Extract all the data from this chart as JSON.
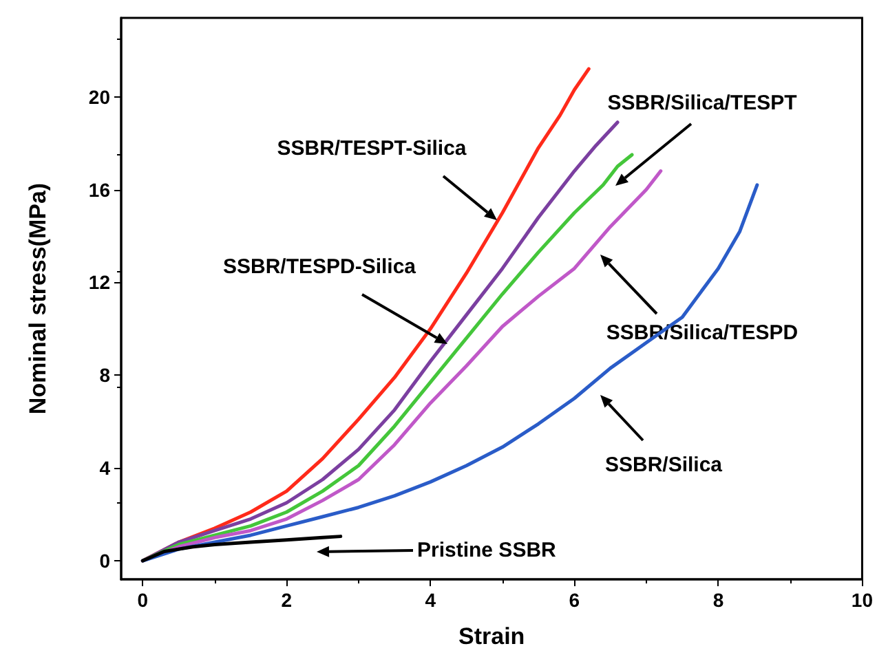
{
  "chart_data": {
    "type": "line",
    "xlabel": "Strain",
    "ylabel": "Nominal stress(MPa)",
    "xlim": [
      -0.3,
      10
    ],
    "ylim": [
      -0.8,
      23.4
    ],
    "xticks": [
      0,
      2,
      4,
      6,
      8,
      10
    ],
    "yticks": [
      0,
      4,
      8,
      12,
      16,
      20
    ],
    "grid": false,
    "marker": "none",
    "line_style": "solid",
    "series": [
      {
        "color": "#ff2a1a",
        "x": [
          0,
          0.5,
          1,
          1.5,
          2,
          2.5,
          3,
          3.5,
          4,
          4.5,
          5,
          5.5,
          5.8,
          6,
          6.2
        ],
        "values": [
          0,
          0.8,
          1.4,
          2.1,
          3,
          4.4,
          6.1,
          7.9,
          10,
          12.4,
          15,
          17.8,
          19.2,
          20.3,
          21.2
        ]
      },
      {
        "color": "#7b3fa0",
        "x": [
          0,
          0.5,
          1,
          1.5,
          2,
          2.5,
          3,
          3.5,
          4,
          4.5,
          5,
          5.5,
          6,
          6.3,
          6.6
        ],
        "values": [
          0,
          0.8,
          1.3,
          1.8,
          2.5,
          3.5,
          4.8,
          6.5,
          8.6,
          10.6,
          12.6,
          14.8,
          16.8,
          17.9,
          18.9
        ]
      },
      {
        "color": "#44c63a",
        "x": [
          0,
          0.5,
          1,
          1.5,
          2,
          2.5,
          3,
          3.5,
          4,
          4.5,
          5,
          5.5,
          6,
          6.4,
          6.6,
          6.8
        ],
        "values": [
          0,
          0.7,
          1.1,
          1.5,
          2.1,
          3,
          4.1,
          5.8,
          7.7,
          9.6,
          11.5,
          13.3,
          15,
          16.2,
          17,
          17.5
        ]
      },
      {
        "color": "#c058c8",
        "x": [
          0,
          0.5,
          1,
          1.5,
          2,
          2.5,
          3,
          3.5,
          4,
          4.5,
          5,
          5.5,
          6,
          6.5,
          7,
          7.2
        ],
        "values": [
          0,
          0.6,
          1,
          1.3,
          1.8,
          2.6,
          3.5,
          5,
          6.8,
          8.4,
          10.1,
          11.4,
          12.6,
          14.4,
          16,
          16.8
        ]
      },
      {
        "color": "#2a5cc8",
        "x": [
          0,
          0.5,
          1,
          1.5,
          2,
          2.5,
          3,
          3.5,
          4,
          4.5,
          5,
          5.5,
          6,
          6.5,
          7,
          7.5,
          8,
          8.3,
          8.54
        ],
        "values": [
          0,
          0.5,
          0.8,
          1.1,
          1.5,
          1.9,
          2.3,
          2.8,
          3.4,
          4.1,
          4.9,
          5.9,
          7,
          8.3,
          9.4,
          10.5,
          12.6,
          14.2,
          16.2
        ]
      },
      {
        "color": "#000000",
        "x": [
          0,
          0.3,
          0.7,
          1,
          1.5,
          2,
          2.5,
          2.75
        ],
        "values": [
          0,
          0.4,
          0.6,
          0.7,
          0.8,
          0.9,
          1,
          1.05
        ]
      }
    ],
    "annotations": [
      "SSBR/TESPT-Silica",
      "SSBR/TESPD-Silica",
      "SSBR/Silica/TESPT",
      "SSBR/Silica/TESPD",
      "SSBR/Silica",
      "Pristine SSBR"
    ]
  }
}
